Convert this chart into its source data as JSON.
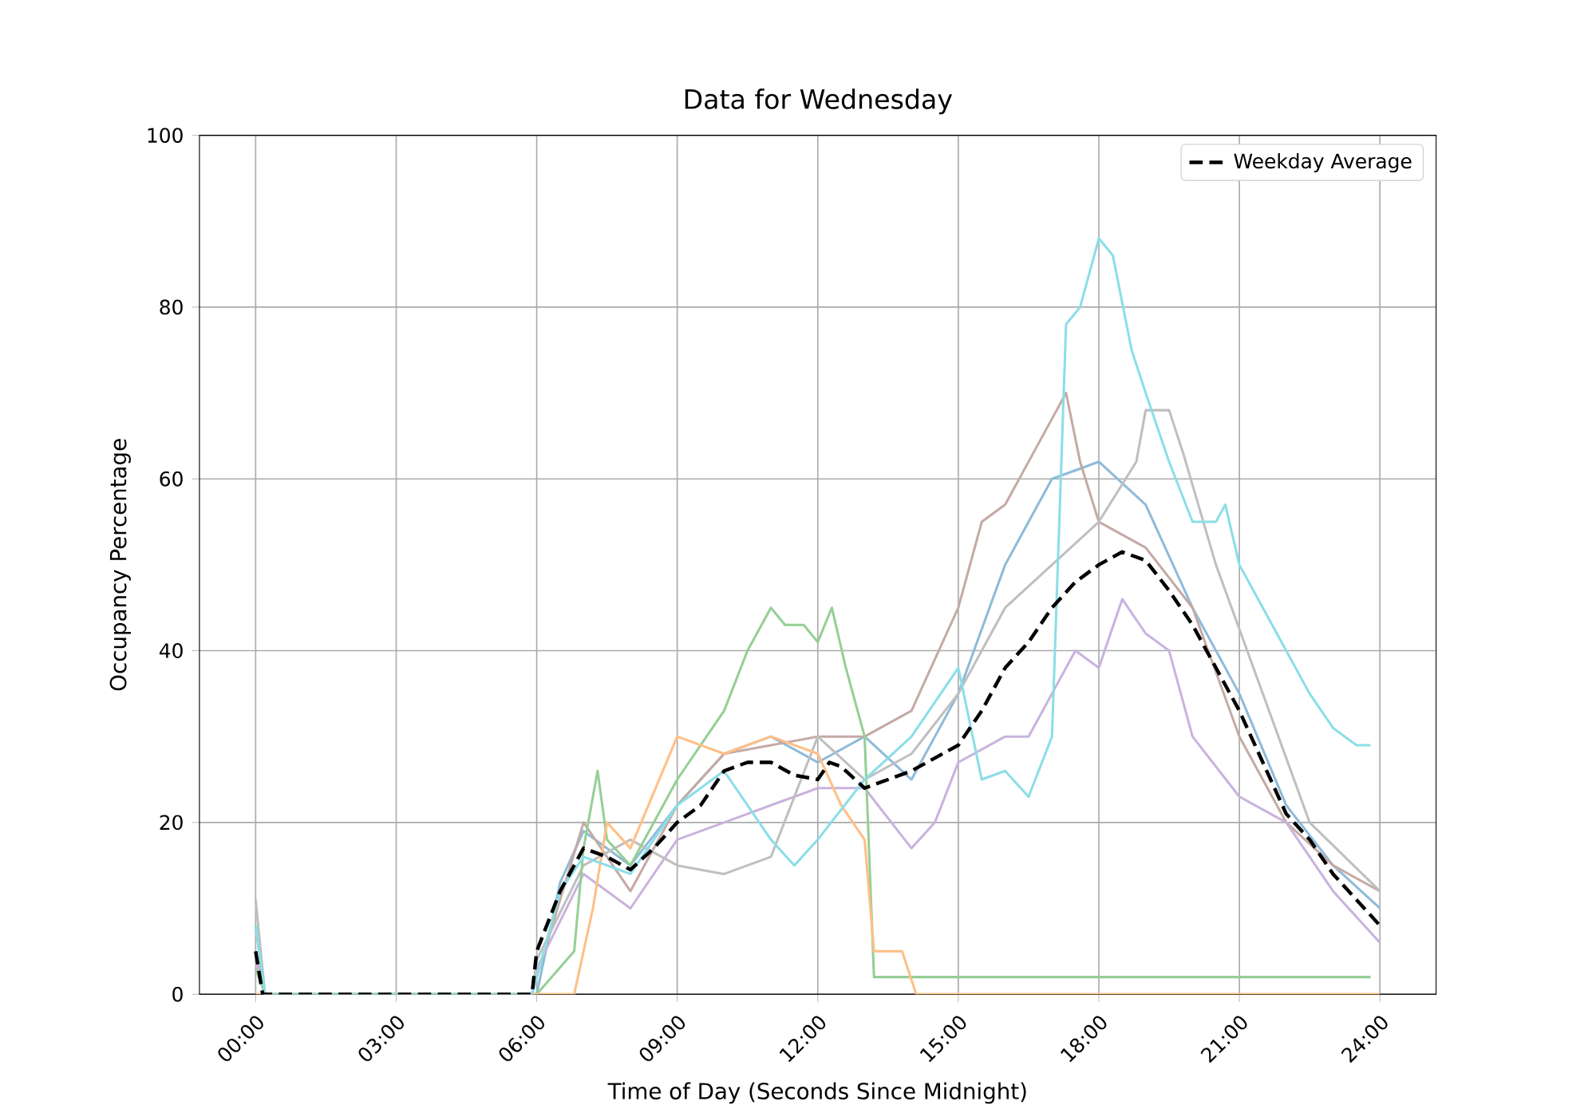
{
  "chart_data": {
    "type": "line",
    "title": "Data for Wednesday",
    "xlabel": "Time of Day (Seconds Since Midnight)",
    "ylabel": "Occupancy Percentage",
    "xlim": [
      -1.2,
      25.2
    ],
    "ylim": [
      0,
      100
    ],
    "xticks": [
      {
        "value": 0,
        "label": "00:00"
      },
      {
        "value": 3,
        "label": "03:00"
      },
      {
        "value": 6,
        "label": "06:00"
      },
      {
        "value": 9,
        "label": "09:00"
      },
      {
        "value": 12,
        "label": "12:00"
      },
      {
        "value": 15,
        "label": "15:00"
      },
      {
        "value": 18,
        "label": "18:00"
      },
      {
        "value": 21,
        "label": "21:00"
      },
      {
        "value": 24,
        "label": "24:00"
      }
    ],
    "yticks": [
      0,
      20,
      40,
      60,
      80,
      100
    ],
    "grid": true,
    "legend": "top right",
    "marker": "none",
    "series": [
      {
        "color": "#8fbbd9",
        "line_style": "solid",
        "x": [
          0,
          0.2,
          6,
          6.5,
          7,
          8,
          9,
          10,
          11,
          12,
          13,
          14,
          15,
          16,
          17,
          18,
          19,
          20,
          21,
          22,
          23,
          24
        ],
        "values": [
          8,
          0,
          0,
          13,
          19,
          15,
          22,
          28,
          30,
          27,
          30,
          25,
          35,
          50,
          60,
          62,
          57,
          45,
          35,
          22,
          15,
          10
        ]
      },
      {
        "color": "#c5aaa5",
        "line_style": "solid",
        "x": [
          0,
          0.2,
          5.9,
          6,
          7,
          8,
          9,
          10,
          12,
          13,
          14,
          15,
          15.5,
          16,
          16.5,
          17,
          17.3,
          17.6,
          18,
          19,
          20,
          21,
          22,
          23,
          24
        ],
        "values": [
          5,
          0,
          0,
          2,
          20,
          12,
          22,
          28,
          30,
          30,
          33,
          45,
          55,
          57,
          62,
          67,
          70,
          62,
          55,
          52,
          45,
          30,
          20,
          15,
          12
        ]
      },
      {
        "color": "#c9b3de",
        "line_style": "solid",
        "x": [
          0,
          0.2,
          5.9,
          6,
          7,
          8,
          9,
          10,
          11,
          12,
          13,
          14,
          14.5,
          15,
          16,
          16.5,
          17,
          17.5,
          18,
          18.5,
          19,
          19.5,
          20,
          21,
          22,
          23,
          24
        ],
        "values": [
          4,
          0,
          0,
          3,
          14,
          10,
          18,
          20,
          22,
          24,
          24,
          17,
          20,
          27,
          30,
          30,
          35,
          40,
          38,
          46,
          42,
          40,
          30,
          23,
          20,
          12,
          6
        ]
      },
      {
        "color": "#bfbfbf",
        "line_style": "solid",
        "x": [
          0,
          0.2,
          5.9,
          6,
          7,
          8,
          9,
          10,
          11,
          12,
          13,
          14,
          15,
          16,
          17,
          18,
          18.8,
          19,
          19.5,
          19.8,
          20.5,
          21.5,
          22.5,
          24
        ],
        "values": [
          11,
          0,
          0,
          4,
          15,
          18,
          15,
          14,
          16,
          30,
          25,
          28,
          35,
          45,
          50,
          55,
          62,
          68,
          68,
          63,
          50,
          35,
          20,
          12
        ]
      },
      {
        "color": "#95cf95",
        "line_style": "solid",
        "x": [
          0,
          0.2,
          6,
          6.8,
          7,
          7.3,
          7.5,
          8,
          9,
          10,
          10.5,
          11,
          11.3,
          11.7,
          12,
          12.3,
          12.6,
          13,
          13.2,
          23.8
        ],
        "values": [
          3,
          0,
          0,
          5,
          17,
          26,
          18,
          15,
          25,
          33,
          40,
          45,
          43,
          43,
          41,
          45,
          38,
          30,
          2,
          2
        ]
      },
      {
        "color": "#ffbf86",
        "line_style": "solid",
        "x": [
          0,
          6,
          6.8,
          7.2,
          7.5,
          8,
          9,
          10,
          11,
          12,
          12.5,
          13,
          13.2,
          13.8,
          14.1,
          24
        ],
        "values": [
          0,
          0,
          0,
          10,
          20,
          17,
          30,
          28,
          30,
          28,
          22,
          18,
          5,
          5,
          0,
          0
        ]
      },
      {
        "color": "#8bdee7",
        "line_style": "solid",
        "x": [
          0,
          0.2,
          5.9,
          6.5,
          7,
          8,
          9,
          10,
          11,
          11.5,
          12,
          13,
          14,
          15,
          15.5,
          16,
          16.5,
          17,
          17.3,
          17.6,
          18,
          18.3,
          18.7,
          19,
          19.5,
          20,
          20.5,
          20.7,
          21,
          21.5,
          22,
          22.5,
          23,
          23.5,
          23.8
        ],
        "values": [
          8,
          0,
          0,
          12,
          16,
          14,
          22,
          26,
          18,
          15,
          18,
          25,
          30,
          38,
          25,
          26,
          23,
          30,
          78,
          80,
          88,
          86,
          75,
          70,
          62,
          55,
          55,
          57,
          50,
          45,
          40,
          35,
          31,
          29,
          29
        ]
      },
      {
        "name": "Weekday Average",
        "color": "#000000",
        "line_style": "dashed",
        "x": [
          0,
          0.15,
          5.9,
          6,
          6.5,
          7,
          7.5,
          8,
          8.5,
          9,
          9.5,
          10,
          10.5,
          11,
          11.5,
          12,
          12.25,
          12.5,
          13,
          13.5,
          14,
          14.5,
          15,
          15.5,
          16,
          16.5,
          17,
          17.5,
          18,
          18.5,
          19,
          19.5,
          20,
          20.5,
          21,
          21.5,
          22,
          22.5,
          23,
          23.5,
          24
        ],
        "values": [
          5,
          0,
          0,
          5,
          12,
          17,
          16,
          14.5,
          17,
          20,
          22,
          26,
          27,
          27,
          25.5,
          25,
          27,
          26.5,
          24,
          25,
          26,
          27.5,
          29,
          33,
          38,
          41,
          45,
          48,
          50,
          51.5,
          50.5,
          47,
          43,
          38,
          33,
          27,
          21,
          18,
          14,
          11,
          8
        ]
      }
    ]
  }
}
